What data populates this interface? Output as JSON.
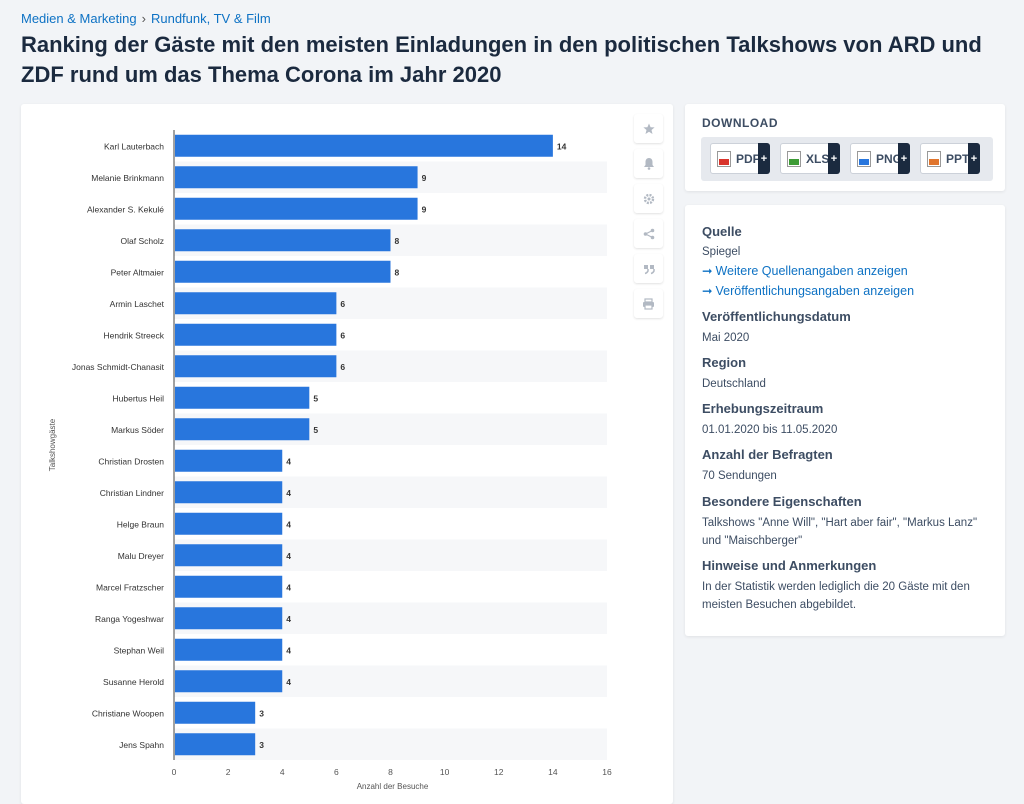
{
  "breadcrumb": {
    "item1": "Medien & Marketing",
    "separator": "›",
    "item2": "Rundfunk, TV & Film"
  },
  "title": "Ranking der Gäste mit den meisten Einladungen in den politischen Talkshows von ARD und ZDF rund um das Thema Corona im Jahr 2020",
  "colors": {
    "bar": "#2876dd",
    "stripe": "#f6f7f9",
    "link": "#0e72c4"
  },
  "chart_data": {
    "type": "bar",
    "orientation": "horizontal",
    "categories": [
      "Karl Lauterbach",
      "Melanie Brinkmann",
      "Alexander S. Kekulé",
      "Olaf Scholz",
      "Peter Altmaier",
      "Armin Laschet",
      "Hendrik Streeck",
      "Jonas Schmidt-Chanasit",
      "Hubertus Heil",
      "Markus Söder",
      "Christian Drosten",
      "Christian Lindner",
      "Helge Braun",
      "Malu Dreyer",
      "Marcel Fratzscher",
      "Ranga Yogeshwar",
      "Stephan Weil",
      "Susanne Herold",
      "Christiane Woopen",
      "Jens Spahn"
    ],
    "values": [
      14,
      9,
      9,
      8,
      8,
      6,
      6,
      6,
      5,
      5,
      4,
      4,
      4,
      4,
      4,
      4,
      4,
      4,
      3,
      3
    ],
    "xlabel": "Anzahl der Besuche",
    "ylabel": "Talkshowgäste",
    "xlim": [
      0,
      16
    ],
    "xticks": [
      0,
      2,
      4,
      6,
      8,
      10,
      12,
      14,
      16
    ],
    "data_labels": true
  },
  "toolbar": {
    "icons": [
      "star-icon",
      "bell-icon",
      "gear-icon",
      "share-icon",
      "quote-icon",
      "print-icon"
    ]
  },
  "download": {
    "title": "DOWNLOAD",
    "buttons": [
      {
        "label": "PDF",
        "icon": "pdf-file-icon",
        "color": "#d9342b"
      },
      {
        "label": "XLS",
        "icon": "xls-file-icon",
        "color": "#3d9b35"
      },
      {
        "label": "PNG",
        "icon": "png-file-icon",
        "color": "#2876dd"
      },
      {
        "label": "PPT",
        "icon": "ppt-file-icon",
        "color": "#e0752d"
      }
    ],
    "plus": "+"
  },
  "info": {
    "source_label": "Quelle",
    "source_value": "Spiegel",
    "arrow": "➞",
    "link1": "Weitere Quellenangaben anzeigen",
    "link2": "Veröffentlichungsangaben anzeigen",
    "pubdate_label": "Veröffentlichungsdatum",
    "pubdate_value": "Mai 2020",
    "region_label": "Region",
    "region_value": "Deutschland",
    "period_label": "Erhebungszeitraum",
    "period_value": "01.01.2020 bis 11.05.2020",
    "respondents_label": "Anzahl der Befragten",
    "respondents_value": "70 Sendungen",
    "special_label": "Besondere Eigenschaften",
    "special_value": "Talkshows \"Anne Will\", \"Hart aber fair\", \"Markus Lanz\" und \"Maischberger\"",
    "notes_label": "Hinweise und Anmerkungen",
    "notes_value": "In der Statistik werden lediglich die 20 Gäste mit den meisten Besuchen abgebildet."
  }
}
